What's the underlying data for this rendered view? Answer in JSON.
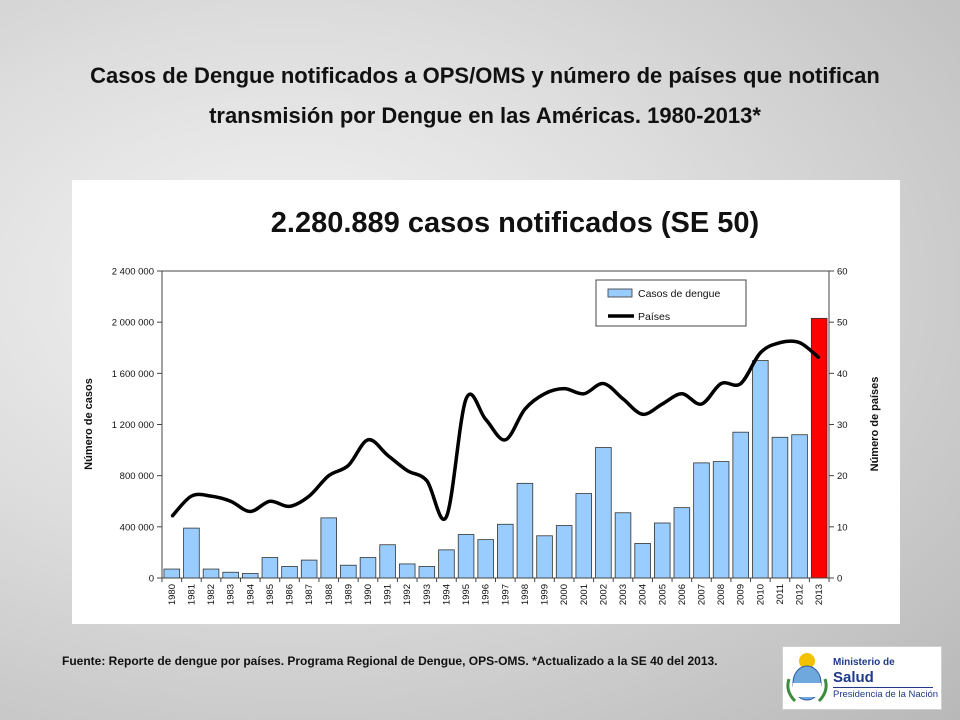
{
  "slide": {
    "title": "Casos de Dengue notificados a OPS/OMS y número de países que notifican transmisión por Dengue en las Américas. 1980-2013*",
    "footer": "Fuente: Reporte de dengue por países. Programa Regional de Dengue, OPS-OMS. *Actualizado a la SE 40 del 2013."
  },
  "logo": {
    "line1": "Ministerio de",
    "line2": "Salud",
    "line3": "Presidencia de la Nación"
  },
  "chart_data": {
    "type": "bar",
    "title": "2.280.889 casos notificados (SE 50)",
    "ylabel": "Número de casos",
    "y2label": "Número de países",
    "ylim": [
      0,
      2400000
    ],
    "y2lim": [
      0,
      60
    ],
    "yticks": [
      "0",
      "400 000",
      "800 000",
      "1 200 000",
      "1 600 000",
      "2 000 000",
      "2 400 000"
    ],
    "y2ticks": [
      "0",
      "10",
      "20",
      "30",
      "40",
      "50",
      "60"
    ],
    "legend_position": "top-right",
    "grid": false,
    "categories": [
      "1980",
      "1981",
      "1982",
      "1983",
      "1984",
      "1985",
      "1986",
      "1987",
      "1988",
      "1989",
      "1990",
      "1991",
      "1992",
      "1993",
      "1994",
      "1995",
      "1996",
      "1997",
      "1998",
      "1999",
      "2000",
      "2001",
      "2002",
      "2003",
      "2004",
      "2005",
      "2006",
      "2007",
      "2008",
      "2009",
      "2010",
      "2011",
      "2012",
      "2013"
    ],
    "series": [
      {
        "name": "Casos de dengue",
        "kind": "bar",
        "axis": "left",
        "color": "#99ccff",
        "highlight_color": "#ff0000",
        "highlight_category": "2013",
        "values": [
          70000,
          390000,
          70000,
          45000,
          35000,
          160000,
          90000,
          140000,
          470000,
          100000,
          160000,
          260000,
          110000,
          90000,
          220000,
          340000,
          300000,
          420000,
          740000,
          330000,
          410000,
          660000,
          1020000,
          510000,
          270000,
          430000,
          550000,
          900000,
          910000,
          1140000,
          1700000,
          1100000,
          1120000,
          2030000
        ]
      },
      {
        "name": "Países",
        "kind": "line",
        "axis": "right",
        "color": "#000000",
        "values": [
          12,
          16,
          16,
          15,
          13,
          15,
          14,
          16,
          20,
          22,
          27,
          24,
          21,
          19,
          12,
          35,
          31,
          27,
          33,
          36,
          37,
          36,
          38,
          35,
          32,
          34,
          36,
          34,
          38,
          38,
          44,
          46,
          46,
          43
        ]
      }
    ]
  }
}
